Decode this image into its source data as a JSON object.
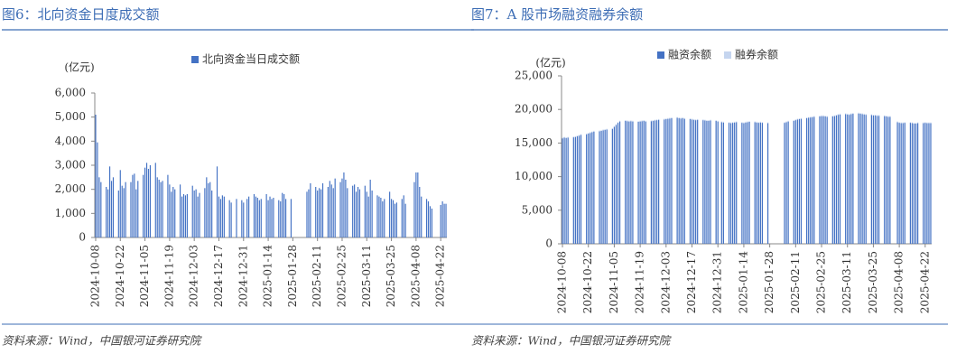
{
  "chart_data": [
    {
      "type": "bar",
      "title": "图6：北向资金日度成交额",
      "unit_label": "(亿元)",
      "source": "资料来源：Wind，中国银河证券研究院",
      "categories": [
        "2024-10-08",
        null,
        null,
        null,
        null,
        null,
        null,
        null,
        null,
        null,
        null,
        null,
        null,
        null,
        "2024-10-22",
        null,
        null,
        null,
        null,
        null,
        null,
        null,
        null,
        null,
        null,
        null,
        null,
        null,
        "2024-11-05",
        null,
        null,
        null,
        null,
        null,
        null,
        null,
        null,
        null,
        null,
        null,
        null,
        null,
        "2024-11-19",
        null,
        null,
        null,
        null,
        null,
        null,
        null,
        null,
        null,
        null,
        null,
        null,
        null,
        "2024-12-03",
        null,
        null,
        null,
        null,
        null,
        null,
        null,
        null,
        null,
        null,
        null,
        null,
        null,
        "2024-12-17",
        null,
        null,
        null,
        null,
        null,
        null,
        null,
        null,
        null,
        null,
        null,
        null,
        null,
        "2024-12-31",
        null,
        null,
        null,
        null,
        null,
        null,
        null,
        null,
        null,
        null,
        null,
        null,
        null,
        "2025-01-14",
        null,
        null,
        null,
        null,
        null,
        null,
        null,
        null,
        null,
        null,
        null,
        null,
        null,
        "2025-01-28",
        null,
        null,
        null,
        null,
        null,
        null,
        null,
        null,
        null,
        null,
        null,
        null,
        null,
        "2025-02-11",
        null,
        null,
        null,
        null,
        null,
        null,
        null,
        null,
        null,
        null,
        null,
        null,
        null,
        "2025-02-25",
        null,
        null,
        null,
        null,
        null,
        null,
        null,
        null,
        null,
        null,
        null,
        null,
        null,
        "2025-03-11",
        null,
        null,
        null,
        null,
        null,
        null,
        null,
        null,
        null,
        null,
        null,
        null,
        null,
        "2025-03-25",
        null,
        null,
        null,
        null,
        null,
        null,
        null,
        null,
        null,
        null,
        null,
        null,
        null,
        "2025-04-08",
        null,
        null,
        null,
        null,
        null,
        null,
        null,
        null,
        null,
        null,
        null,
        null,
        null,
        "2025-04-22",
        null,
        null,
        null
      ],
      "series": [
        {
          "name": "北向资金当日成交额",
          "color": "#4472c4",
          "values": [
            5100,
            3950,
            2500,
            2300,
            null,
            null,
            2100,
            2000,
            2950,
            2350,
            2500,
            null,
            null,
            1950,
            2800,
            2150,
            2050,
            2300,
            null,
            null,
            2300,
            2600,
            2650,
            2000,
            2350,
            null,
            null,
            2600,
            2900,
            3100,
            2850,
            3000,
            null,
            null,
            3100,
            2500,
            2400,
            2300,
            2350,
            null,
            null,
            2600,
            2200,
            1900,
            2100,
            2000,
            null,
            null,
            2200,
            1700,
            1800,
            1750,
            1800,
            null,
            null,
            2150,
            1950,
            2000,
            1700,
            1850,
            null,
            null,
            2050,
            2500,
            2250,
            2300,
            1950,
            null,
            null,
            2950,
            1700,
            1600,
            1750,
            1700,
            null,
            null,
            1550,
            1450,
            null,
            null,
            1600,
            null,
            null,
            1550,
            1450,
            null,
            1600,
            1700,
            null,
            null,
            1800,
            1700,
            1650,
            1550,
            1600,
            null,
            null,
            1800,
            1550,
            1700,
            1600,
            1650,
            null,
            null,
            1550,
            1500,
            1850,
            1800,
            1600,
            null,
            null,
            1600,
            null,
            null,
            null,
            null,
            null,
            null,
            null,
            null,
            1900,
            2000,
            2250,
            null,
            null,
            2100,
            1950,
            2050,
            2000,
            2250,
            null,
            null,
            2100,
            2350,
            2200,
            2050,
            2450,
            null,
            null,
            2300,
            2450,
            2700,
            2400,
            2050,
            null,
            null,
            2150,
            2200,
            1900,
            2100,
            2000,
            null,
            null,
            2150,
            1900,
            1700,
            2400,
            1950,
            null,
            null,
            1750,
            1700,
            1650,
            1500,
            1600,
            null,
            null,
            1900,
            1600,
            1550,
            1400,
            1450,
            null,
            null,
            1600,
            1750,
            1400,
            null,
            null,
            null,
            null,
            2300,
            2700,
            2700,
            2100,
            1700,
            null,
            null,
            1600,
            1500,
            1300,
            1200,
            null,
            null,
            null,
            null,
            1350,
            1500,
            1400,
            1400
          ]
        }
      ],
      "ylim": [
        0,
        6000
      ],
      "yticks": [
        0,
        {
          "value": 1000,
          "label": "1,000"
        },
        {
          "value": 2000,
          "label": "2,000"
        },
        {
          "value": 3000,
          "label": "3,000"
        },
        {
          "value": 4000,
          "label": "4,000"
        },
        {
          "value": 5000,
          "label": "5,000"
        },
        {
          "value": 6000,
          "label": "6,000"
        }
      ],
      "stacked": false
    },
    {
      "type": "bar",
      "title": "图7：A 股市场融资融券余额",
      "unit_label": "(亿元)",
      "source": "资料来源：Wind，中国银河证券研究院",
      "categories": [
        "2024-10-08",
        null,
        null,
        null,
        null,
        null,
        null,
        null,
        null,
        null,
        null,
        null,
        null,
        null,
        "2024-10-22",
        null,
        null,
        null,
        null,
        null,
        null,
        null,
        null,
        null,
        null,
        null,
        null,
        null,
        "2024-11-05",
        null,
        null,
        null,
        null,
        null,
        null,
        null,
        null,
        null,
        null,
        null,
        null,
        null,
        "2024-11-19",
        null,
        null,
        null,
        null,
        null,
        null,
        null,
        null,
        null,
        null,
        null,
        null,
        null,
        "2024-12-03",
        null,
        null,
        null,
        null,
        null,
        null,
        null,
        null,
        null,
        null,
        null,
        null,
        null,
        "2024-12-17",
        null,
        null,
        null,
        null,
        null,
        null,
        null,
        null,
        null,
        null,
        null,
        null,
        null,
        "2024-12-31",
        null,
        null,
        null,
        null,
        null,
        null,
        null,
        null,
        null,
        null,
        null,
        null,
        null,
        "2025-01-14",
        null,
        null,
        null,
        null,
        null,
        null,
        null,
        null,
        null,
        null,
        null,
        null,
        null,
        "2025-01-28",
        null,
        null,
        null,
        null,
        null,
        null,
        null,
        null,
        null,
        null,
        null,
        null,
        null,
        "2025-02-11",
        null,
        null,
        null,
        null,
        null,
        null,
        null,
        null,
        null,
        null,
        null,
        null,
        null,
        "2025-02-25",
        null,
        null,
        null,
        null,
        null,
        null,
        null,
        null,
        null,
        null,
        null,
        null,
        null,
        "2025-03-11",
        null,
        null,
        null,
        null,
        null,
        null,
        null,
        null,
        null,
        null,
        null,
        null,
        null,
        "2025-03-25",
        null,
        null,
        null,
        null,
        null,
        null,
        null,
        null,
        null,
        null,
        null,
        null,
        null,
        "2025-04-08",
        null,
        null,
        null,
        null,
        null,
        null,
        null,
        null,
        null,
        null,
        null,
        null,
        null,
        "2025-04-22",
        null,
        null,
        null
      ],
      "series": [
        {
          "name": "融资余额",
          "color": "#4472c4",
          "values": [
            15700,
            15800,
            15750,
            15800,
            null,
            null,
            15850,
            15900,
            16000,
            16100,
            16200,
            null,
            null,
            16300,
            16400,
            16500,
            16600,
            16700,
            null,
            null,
            16750,
            16800,
            16900,
            16950,
            17000,
            null,
            null,
            17100,
            17400,
            17700,
            18000,
            18200,
            null,
            null,
            18300,
            18250,
            18200,
            18250,
            18200,
            null,
            null,
            18150,
            18200,
            18250,
            18300,
            18200,
            null,
            null,
            18250,
            18300,
            18350,
            18400,
            18450,
            null,
            null,
            18500,
            18550,
            18600,
            18650,
            18700,
            null,
            null,
            18750,
            18700,
            18650,
            18700,
            18600,
            null,
            null,
            18550,
            18500,
            18450,
            18400,
            18450,
            null,
            null,
            18400,
            18350,
            18300,
            18300,
            18350,
            null,
            null,
            18300,
            18200,
            null,
            18100,
            18050,
            null,
            null,
            18000,
            17950,
            18000,
            18050,
            18100,
            null,
            null,
            18000,
            17950,
            18050,
            18100,
            18150,
            null,
            null,
            18100,
            18050,
            18000,
            18050,
            18000,
            null,
            null,
            17950,
            null,
            null,
            null,
            null,
            null,
            null,
            null,
            null,
            18000,
            18100,
            18200,
            null,
            null,
            18300,
            18400,
            18500,
            18550,
            18600,
            null,
            null,
            18700,
            18750,
            18800,
            18850,
            18900,
            null,
            null,
            18950,
            19000,
            19000,
            18950,
            18900,
            null,
            null,
            18950,
            19000,
            19100,
            19200,
            19250,
            null,
            null,
            19300,
            19250,
            19200,
            19300,
            19350,
            null,
            null,
            19400,
            19350,
            19300,
            19250,
            19200,
            null,
            null,
            19150,
            19100,
            19100,
            19050,
            19050,
            null,
            null,
            19000,
            18950,
            18900,
            18900,
            null,
            null,
            null,
            18100,
            18000,
            17950,
            17950,
            18000,
            null,
            null,
            18000,
            17950,
            17900,
            17900,
            17950,
            null,
            null,
            17950,
            18000,
            17950,
            17950,
            17950
          ]
        },
        {
          "name": "融券余额",
          "color": "#c5d5ef",
          "values": [
            120,
            120,
            120,
            120,
            null,
            null,
            120,
            120,
            120,
            120,
            120,
            null,
            null,
            120,
            120,
            120,
            120,
            120,
            null,
            null,
            120,
            120,
            120,
            120,
            120,
            null,
            null,
            120,
            120,
            120,
            120,
            120,
            null,
            null,
            120,
            120,
            120,
            120,
            120,
            null,
            null,
            120,
            120,
            120,
            120,
            120,
            null,
            null,
            120,
            120,
            120,
            120,
            120,
            null,
            null,
            120,
            120,
            120,
            120,
            120,
            null,
            null,
            120,
            120,
            120,
            120,
            120,
            null,
            null,
            120,
            120,
            120,
            120,
            120,
            null,
            null,
            120,
            120,
            120,
            120,
            120,
            null,
            null,
            120,
            120,
            null,
            120,
            120,
            null,
            null,
            120,
            120,
            120,
            120,
            120,
            null,
            null,
            120,
            120,
            120,
            120,
            120,
            null,
            null,
            120,
            120,
            120,
            120,
            120,
            null,
            null,
            120,
            null,
            null,
            null,
            null,
            null,
            null,
            null,
            null,
            120,
            120,
            120,
            null,
            null,
            120,
            120,
            120,
            120,
            120,
            null,
            null,
            120,
            120,
            120,
            120,
            120,
            null,
            null,
            120,
            120,
            120,
            120,
            120,
            null,
            null,
            120,
            120,
            120,
            120,
            120,
            null,
            null,
            120,
            120,
            120,
            120,
            120,
            null,
            null,
            120,
            120,
            120,
            120,
            120,
            null,
            null,
            120,
            120,
            120,
            120,
            120,
            null,
            null,
            120,
            120,
            120,
            120,
            null,
            null,
            null,
            120,
            120,
            120,
            120,
            120,
            null,
            null,
            120,
            120,
            120,
            120,
            120,
            null,
            null,
            120,
            120,
            120,
            120,
            120
          ]
        }
      ],
      "ylim": [
        0,
        25000
      ],
      "yticks": [
        0,
        {
          "value": 5000,
          "label": "5,000"
        },
        {
          "value": 10000,
          "label": "10,000"
        },
        {
          "value": 15000,
          "label": "15,000"
        },
        {
          "value": 20000,
          "label": "20,000"
        },
        {
          "value": 25000,
          "label": "25,000"
        }
      ],
      "stacked": true
    }
  ]
}
